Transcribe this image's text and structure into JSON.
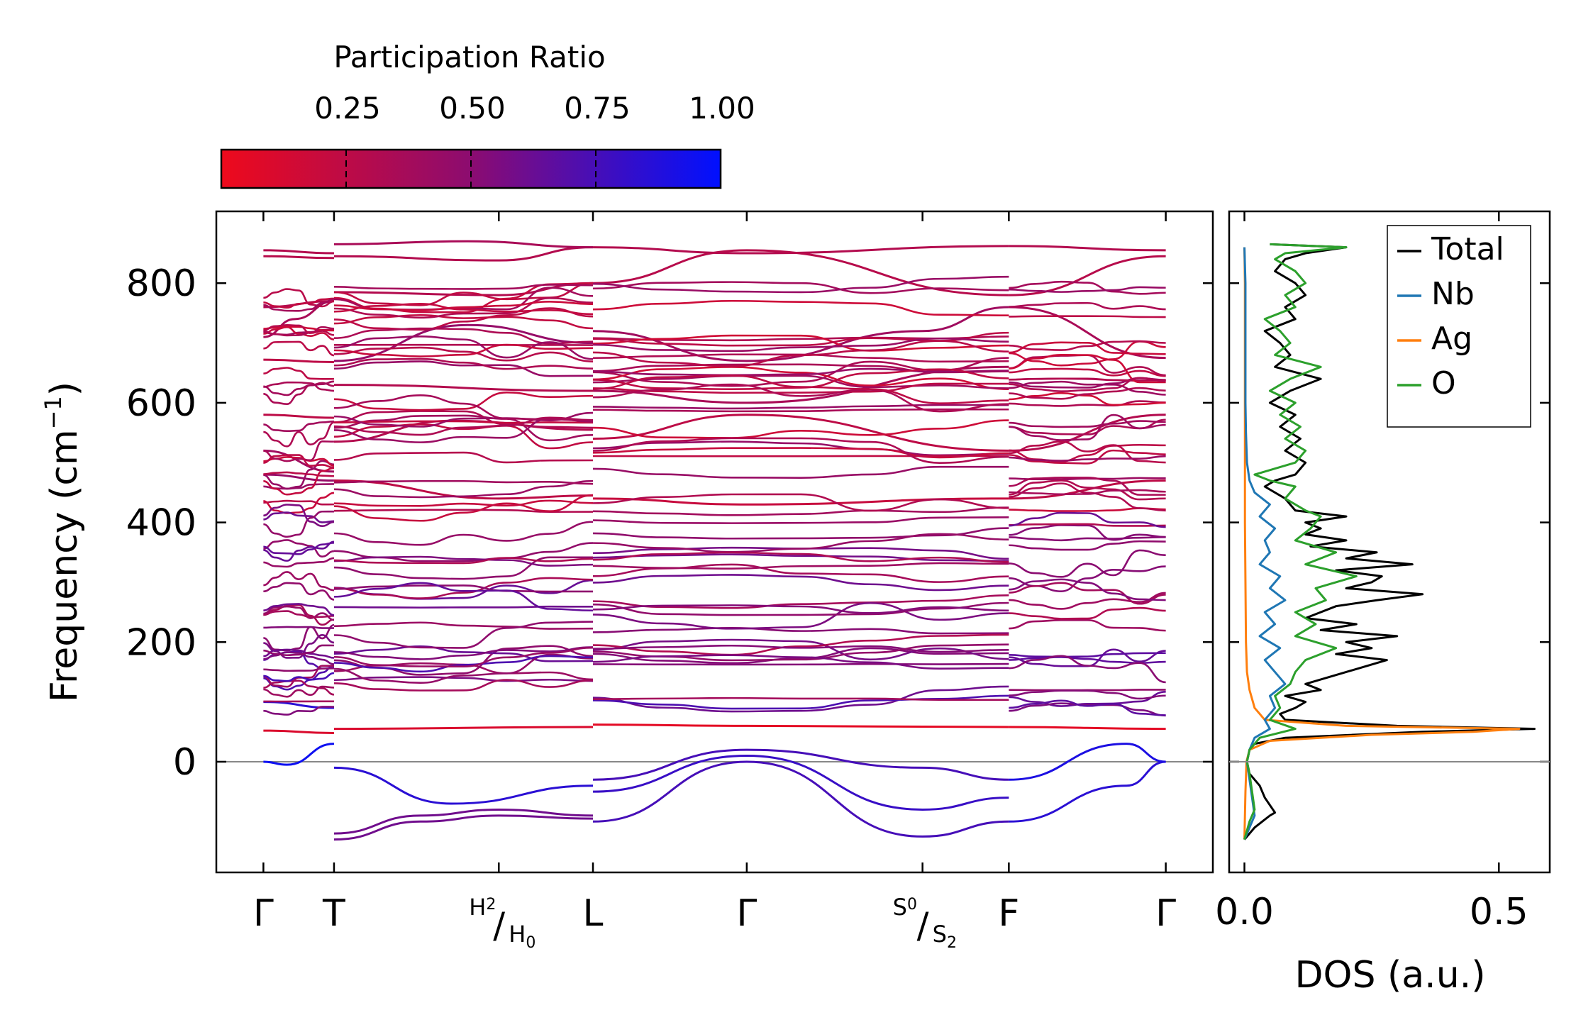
{
  "chart_data": [
    {
      "type": "line",
      "panel": "band-structure",
      "ylabel": "Frequency (cm",
      "ylabel_sup": "−1",
      "ylabel_close": ")",
      "ylim": [
        -185,
        920
      ],
      "yticks": [
        0,
        200,
        400,
        600,
        800
      ],
      "ytick_labels": [
        "0",
        "200",
        "400",
        "600",
        "800"
      ],
      "zero_line": 0,
      "kpoints": [
        {
          "label": "Γ",
          "pos": 0
        },
        {
          "label": "T",
          "pos": 0.45
        },
        {
          "label_top": "H",
          "sub_top": "2",
          "label_bottom": "H",
          "sub_bottom": "0",
          "pos": 1.5
        },
        {
          "label": "L",
          "pos": 2.1
        },
        {
          "label": "Γ",
          "pos": 3.08
        },
        {
          "label_top": "S",
          "sub_top": "0",
          "label_bottom": "S",
          "sub_bottom": "2",
          "pos": 4.2
        },
        {
          "label": "F",
          "pos": 4.75
        },
        {
          "label": "Γ",
          "pos": 5.75
        }
      ],
      "segment_breaks": [
        0.45,
        2.1,
        4.75
      ],
      "xlim": [
        -0.3,
        6.05
      ],
      "colorbar": {
        "title": "Participation Ratio",
        "range": [
          0.0,
          1.0
        ],
        "ticks": [
          0.25,
          0.5,
          0.75,
          1.0
        ],
        "tick_labels": [
          "0.25",
          "0.50",
          "0.75",
          "1.00"
        ],
        "color_low": "#ee0a1c",
        "color_mid": "#8c0c70",
        "color_high": "#0010ff"
      },
      "bands_representative": [
        {
          "segment": 0,
          "x": [
            0,
            0.45
          ],
          "y": [
            855,
            850
          ],
          "pr": 0.3
        },
        {
          "segment": 0,
          "x": [
            0,
            0.45
          ],
          "y": [
            845,
            842
          ],
          "pr": 0.28
        },
        {
          "segment": 0,
          "x": [
            0,
            0.2,
            0.45
          ],
          "y": [
            710,
            740,
            770
          ],
          "pr": 0.35
        },
        {
          "segment": 0,
          "x": [
            0,
            0.45
          ],
          "y": [
            760,
            770
          ],
          "pr": 0.3
        },
        {
          "segment": 0,
          "x": [
            0,
            0.45
          ],
          "y": [
            672,
            668
          ],
          "pr": 0.25
        },
        {
          "segment": 0,
          "x": [
            0,
            0.45
          ],
          "y": [
            580,
            575
          ],
          "pr": 0.25
        },
        {
          "segment": 0,
          "x": [
            0,
            0.45
          ],
          "y": [
            520,
            485
          ],
          "pr": 0.4
        },
        {
          "segment": 0,
          "x": [
            0,
            0.45
          ],
          "y": [
            480,
            470
          ],
          "pr": 0.45
        },
        {
          "segment": 0,
          "x": [
            0,
            0.45
          ],
          "y": [
            52,
            48
          ],
          "pr": 0.1
        },
        {
          "segment": 0,
          "x": [
            0,
            0.15,
            0.45
          ],
          "y": [
            0,
            -5,
            30
          ],
          "pr": 0.95
        },
        {
          "segment": 0,
          "x": [
            0,
            0.45
          ],
          "y": [
            100,
            90
          ],
          "pr": 0.85
        },
        {
          "segment": 1,
          "x": [
            0.45,
            1.0,
            1.5,
            2.1
          ],
          "y": [
            -130,
            -100,
            -90,
            -95
          ],
          "pr": 0.6
        },
        {
          "segment": 1,
          "x": [
            0.45,
            1.0,
            1.5,
            2.1
          ],
          "y": [
            -120,
            -90,
            -80,
            -90
          ],
          "pr": 0.6
        },
        {
          "segment": 1,
          "x": [
            0.45,
            1.2,
            2.1
          ],
          "y": [
            -10,
            -70,
            -40
          ],
          "pr": 0.85
        },
        {
          "segment": 1,
          "x": [
            0.45,
            1.5,
            2.1
          ],
          "y": [
            845,
            838,
            860
          ],
          "pr": 0.3
        },
        {
          "segment": 1,
          "x": [
            0.45,
            1.3,
            2.1
          ],
          "y": [
            865,
            870,
            860
          ],
          "pr": 0.35
        },
        {
          "segment": 1,
          "x": [
            0.45,
            1.5,
            2.1
          ],
          "y": [
            785,
            780,
            800
          ],
          "pr": 0.3
        },
        {
          "segment": 1,
          "x": [
            0.45,
            1.3,
            2.1
          ],
          "y": [
            670,
            730,
            700
          ],
          "pr": 0.45
        },
        {
          "segment": 1,
          "x": [
            0.45,
            2.1
          ],
          "y": [
            630,
            620
          ],
          "pr": 0.3
        },
        {
          "segment": 1,
          "x": [
            0.45,
            1.2,
            2.1
          ],
          "y": [
            535,
            570,
            555
          ],
          "pr": 0.3
        },
        {
          "segment": 1,
          "x": [
            0.45,
            1.5,
            2.1
          ],
          "y": [
            470,
            440,
            445
          ],
          "pr": 0.25
        },
        {
          "segment": 1,
          "x": [
            0.45,
            2.1
          ],
          "y": [
            55,
            58
          ],
          "pr": 0.1
        },
        {
          "segment": 2,
          "x": [
            2.1,
            3.08,
            4.75
          ],
          "y": [
            860,
            850,
            862
          ],
          "pr": 0.3
        },
        {
          "segment": 2,
          "x": [
            2.1,
            3.08,
            4.75
          ],
          "y": [
            800,
            855,
            780
          ],
          "pr": 0.28
        },
        {
          "segment": 2,
          "x": [
            2.1,
            3.08,
            4.2,
            4.75
          ],
          "y": [
            720,
            670,
            720,
            760
          ],
          "pr": 0.4
        },
        {
          "segment": 2,
          "x": [
            2.1,
            3.08,
            4.75
          ],
          "y": [
            620,
            600,
            660
          ],
          "pr": 0.35
        },
        {
          "segment": 2,
          "x": [
            2.1,
            3.08,
            4.75
          ],
          "y": [
            540,
            580,
            520
          ],
          "pr": 0.25
        },
        {
          "segment": 2,
          "x": [
            2.1,
            3.08,
            4.75
          ],
          "y": [
            440,
            430,
            440
          ],
          "pr": 0.2
        },
        {
          "segment": 2,
          "x": [
            2.1,
            3.08,
            4.75
          ],
          "y": [
            62,
            60,
            58
          ],
          "pr": 0.05
        },
        {
          "segment": 2,
          "x": [
            2.1,
            3.08,
            4.2,
            4.75
          ],
          "y": [
            -30,
            20,
            -10,
            -30
          ],
          "pr": 0.75
        },
        {
          "segment": 2,
          "x": [
            2.1,
            3.08,
            4.2,
            4.75
          ],
          "y": [
            -100,
            0,
            -125,
            -100
          ],
          "pr": 0.75
        },
        {
          "segment": 2,
          "x": [
            2.1,
            3.08,
            4.2,
            4.75
          ],
          "y": [
            -50,
            10,
            -80,
            -60
          ],
          "pr": 0.8
        },
        {
          "segment": 3,
          "x": [
            4.75,
            5.75
          ],
          "y": [
            862,
            855
          ],
          "pr": 0.3
        },
        {
          "segment": 3,
          "x": [
            4.75,
            5.75
          ],
          "y": [
            780,
            845
          ],
          "pr": 0.28
        },
        {
          "segment": 3,
          "x": [
            4.75,
            5.75
          ],
          "y": [
            760,
            675
          ],
          "pr": 0.35
        },
        {
          "segment": 3,
          "x": [
            4.75,
            5.75
          ],
          "y": [
            520,
            580
          ],
          "pr": 0.3
        },
        {
          "segment": 3,
          "x": [
            4.75,
            5.75
          ],
          "y": [
            440,
            470
          ],
          "pr": 0.25
        },
        {
          "segment": 3,
          "x": [
            4.75,
            5.75
          ],
          "y": [
            58,
            55
          ],
          "pr": 0.05
        },
        {
          "segment": 3,
          "x": [
            4.75,
            5.5,
            5.75
          ],
          "y": [
            -100,
            -40,
            0
          ],
          "pr": 0.85
        },
        {
          "segment": 3,
          "x": [
            4.75,
            5.5,
            5.75
          ],
          "y": [
            -30,
            30,
            0
          ],
          "pr": 0.9
        }
      ]
    },
    {
      "type": "line",
      "panel": "dos",
      "xlabel": "DOS (a.u.)",
      "xlim": [
        -0.03,
        0.6
      ],
      "xticks": [
        0.0,
        0.5
      ],
      "xtick_labels": [
        "0.0",
        "0.5"
      ],
      "ylim": [
        -185,
        920
      ],
      "legend_position": "top-right",
      "series": [
        {
          "name": "Total",
          "color": "#000000",
          "freq": [
            -130,
            -110,
            -90,
            -85,
            -60,
            -40,
            -20,
            0,
            20,
            30,
            40,
            50,
            55,
            60,
            70,
            80,
            90,
            100,
            110,
            120,
            130,
            150,
            170,
            180,
            190,
            200,
            210,
            220,
            230,
            240,
            260,
            270,
            280,
            290,
            300,
            310,
            320,
            330,
            340,
            350,
            360,
            370,
            380,
            390,
            400,
            410,
            420,
            440,
            460,
            470,
            480,
            500,
            520,
            540,
            560,
            580,
            600,
            620,
            640,
            660,
            680,
            700,
            720,
            740,
            760,
            780,
            800,
            820,
            840,
            850,
            860,
            865
          ],
          "values": [
            0.0,
            0.02,
            0.05,
            0.06,
            0.04,
            0.03,
            0.01,
            0.005,
            0.01,
            0.02,
            0.08,
            0.35,
            0.57,
            0.3,
            0.08,
            0.07,
            0.1,
            0.12,
            0.08,
            0.15,
            0.12,
            0.2,
            0.28,
            0.18,
            0.25,
            0.2,
            0.3,
            0.15,
            0.22,
            0.12,
            0.18,
            0.26,
            0.35,
            0.2,
            0.25,
            0.27,
            0.18,
            0.33,
            0.2,
            0.26,
            0.13,
            0.2,
            0.12,
            0.15,
            0.12,
            0.2,
            0.1,
            0.08,
            0.04,
            0.06,
            0.1,
            0.12,
            0.08,
            0.11,
            0.07,
            0.1,
            0.05,
            0.09,
            0.15,
            0.06,
            0.09,
            0.07,
            0.04,
            0.1,
            0.08,
            0.12,
            0.1,
            0.06,
            0.08,
            0.12,
            0.2,
            0.05
          ]
        },
        {
          "name": "Nb",
          "color": "#1f77b4",
          "freq": [
            -130,
            -110,
            -90,
            -60,
            -30,
            0,
            20,
            40,
            55,
            70,
            90,
            110,
            130,
            150,
            170,
            190,
            210,
            230,
            250,
            270,
            290,
            310,
            330,
            350,
            370,
            390,
            410,
            430,
            450,
            470,
            500,
            550,
            600,
            650,
            700,
            750,
            800,
            860
          ],
          "values": [
            0.0,
            0.01,
            0.02,
            0.015,
            0.01,
            0.005,
            0.01,
            0.02,
            0.05,
            0.04,
            0.06,
            0.05,
            0.08,
            0.06,
            0.04,
            0.07,
            0.03,
            0.06,
            0.04,
            0.08,
            0.05,
            0.07,
            0.03,
            0.05,
            0.04,
            0.06,
            0.03,
            0.05,
            0.02,
            0.01,
            0.005,
            0.003,
            0.002,
            0.002,
            0.002,
            0.002,
            0.002,
            0.0
          ]
        },
        {
          "name": "Ag",
          "color": "#ff7f0e",
          "freq": [
            -130,
            -50,
            0,
            20,
            35,
            45,
            50,
            55,
            60,
            70,
            90,
            120,
            150,
            200,
            300,
            400,
            500,
            600,
            700,
            800,
            860
          ],
          "values": [
            0.0,
            0.002,
            0.004,
            0.01,
            0.05,
            0.25,
            0.45,
            0.54,
            0.2,
            0.04,
            0.02,
            0.01,
            0.005,
            0.003,
            0.002,
            0.001,
            0.001,
            0.001,
            0.001,
            0.001,
            0.0
          ]
        },
        {
          "name": "O",
          "color": "#2ca02c",
          "freq": [
            -130,
            -100,
            -80,
            -50,
            -20,
            0,
            20,
            40,
            55,
            70,
            90,
            110,
            130,
            150,
            170,
            190,
            210,
            230,
            250,
            270,
            290,
            310,
            330,
            350,
            370,
            390,
            410,
            420,
            440,
            460,
            470,
            480,
            500,
            520,
            540,
            560,
            580,
            600,
            620,
            640,
            660,
            680,
            700,
            720,
            740,
            760,
            780,
            800,
            820,
            840,
            850,
            860,
            865
          ],
          "values": [
            0.0,
            0.01,
            0.02,
            0.015,
            0.01,
            0.005,
            0.01,
            0.03,
            0.1,
            0.05,
            0.07,
            0.06,
            0.09,
            0.1,
            0.12,
            0.18,
            0.1,
            0.14,
            0.1,
            0.16,
            0.14,
            0.22,
            0.12,
            0.18,
            0.1,
            0.13,
            0.15,
            0.12,
            0.08,
            0.1,
            0.05,
            0.02,
            0.1,
            0.12,
            0.08,
            0.11,
            0.07,
            0.1,
            0.05,
            0.09,
            0.15,
            0.06,
            0.09,
            0.07,
            0.04,
            0.1,
            0.08,
            0.12,
            0.1,
            0.06,
            0.08,
            0.2,
            0.05
          ]
        }
      ]
    }
  ]
}
